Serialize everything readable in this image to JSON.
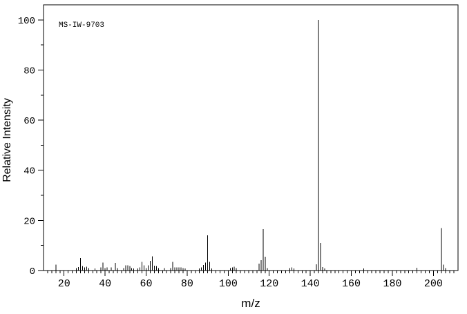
{
  "figure": {
    "annotation": "MS-IW-9703",
    "background_color": "#ffffff",
    "line_color": "#000000"
  },
  "chart_data": {
    "type": "bar",
    "subtype": "mass-spectrum-stick-plot",
    "title": "",
    "annotation": "MS-IW-9703",
    "xlabel": "m/z",
    "ylabel": "Relative Intensity",
    "xlim": [
      10,
      212
    ],
    "ylim": [
      0,
      106
    ],
    "x_major_ticks": [
      20,
      40,
      60,
      80,
      100,
      120,
      140,
      160,
      180,
      200
    ],
    "x_minor_tick_step": 2,
    "y_major_ticks": [
      0,
      20,
      40,
      60,
      80,
      100
    ],
    "y_minor_tick_step": 10,
    "grid": false,
    "legend": false,
    "peaks": [
      [
        16,
        2.4
      ],
      [
        26,
        1
      ],
      [
        27,
        1.4
      ],
      [
        28,
        5
      ],
      [
        29,
        1.8
      ],
      [
        30,
        1.2
      ],
      [
        31,
        1.5
      ],
      [
        32,
        1
      ],
      [
        35,
        0.8
      ],
      [
        38,
        1.2
      ],
      [
        39,
        3.2
      ],
      [
        40,
        1
      ],
      [
        41,
        1.2
      ],
      [
        43,
        1.2
      ],
      [
        45,
        3
      ],
      [
        46,
        1
      ],
      [
        49,
        1
      ],
      [
        50,
        2
      ],
      [
        51,
        2
      ],
      [
        52,
        1.8
      ],
      [
        53,
        1
      ],
      [
        54,
        0.8
      ],
      [
        56,
        0.8
      ],
      [
        57,
        1.2
      ],
      [
        58,
        3.5
      ],
      [
        59,
        2
      ],
      [
        60,
        1
      ],
      [
        61,
        2.1
      ],
      [
        62,
        3.8
      ],
      [
        63,
        5.7
      ],
      [
        64,
        1.9
      ],
      [
        65,
        1.8
      ],
      [
        66,
        1
      ],
      [
        69,
        1
      ],
      [
        72,
        1
      ],
      [
        73,
        3.5
      ],
      [
        74,
        1.2
      ],
      [
        75,
        1.2
      ],
      [
        76,
        1.2
      ],
      [
        77,
        1.3
      ],
      [
        78,
        1
      ],
      [
        79,
        0.8
      ],
      [
        86,
        0.8
      ],
      [
        87,
        1.2
      ],
      [
        88,
        2.2
      ],
      [
        89,
        3.2
      ],
      [
        90,
        14
      ],
      [
        91,
        3.4
      ],
      [
        92,
        0.8
      ],
      [
        101,
        0.9
      ],
      [
        102,
        1.2
      ],
      [
        103,
        1.5
      ],
      [
        104,
        0.9
      ],
      [
        115,
        2.8
      ],
      [
        116,
        4.1
      ],
      [
        117,
        16.5
      ],
      [
        118,
        5.5
      ],
      [
        119,
        1
      ],
      [
        130,
        0.9
      ],
      [
        131,
        1.2
      ],
      [
        132,
        0.8
      ],
      [
        143,
        2.5
      ],
      [
        144,
        100
      ],
      [
        145,
        11
      ],
      [
        146,
        1.4
      ],
      [
        147,
        0.8
      ],
      [
        166,
        0.8
      ],
      [
        192,
        1.1
      ],
      [
        204,
        17
      ],
      [
        205,
        2.3
      ],
      [
        206,
        0.9
      ]
    ]
  }
}
